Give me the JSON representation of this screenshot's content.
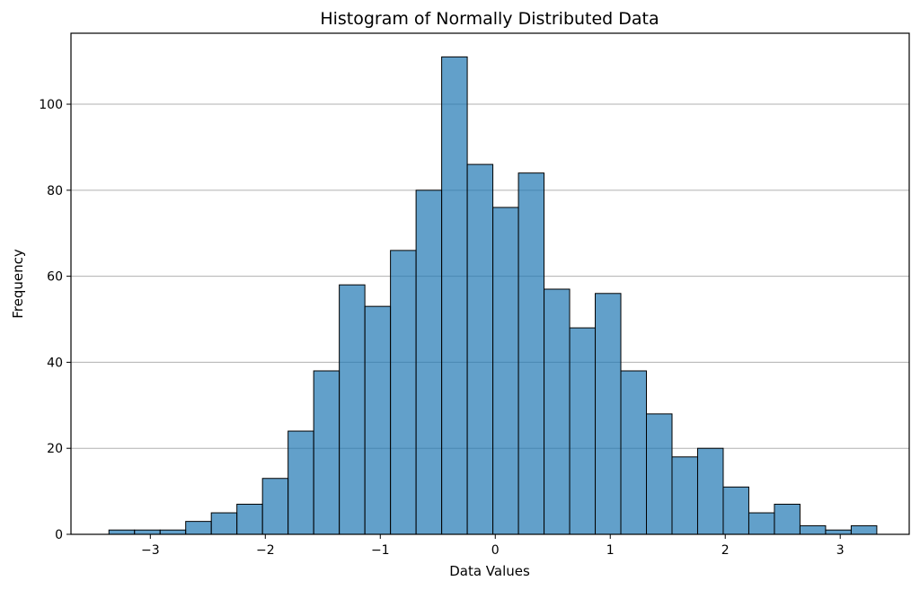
{
  "chart_data": {
    "type": "bar",
    "title": "Histogram of Normally Distributed Data",
    "xlabel": "Data Values",
    "ylabel": "Frequency",
    "bin_start": -3.36,
    "bin_width": 0.2226,
    "values": [
      1,
      1,
      1,
      3,
      5,
      7,
      13,
      24,
      38,
      58,
      53,
      66,
      80,
      111,
      86,
      76,
      84,
      57,
      48,
      56,
      38,
      28,
      18,
      20,
      11,
      5,
      7,
      2,
      1,
      2
    ],
    "xlim": [
      -3.69,
      3.6
    ],
    "ylim": [
      0,
      116.5
    ],
    "xticks": [
      -3,
      -2,
      -1,
      0,
      1,
      2,
      3
    ],
    "xtick_labels": [
      "−3",
      "−2",
      "−1",
      "0",
      "1",
      "2",
      "3"
    ],
    "yticks": [
      0,
      20,
      40,
      60,
      80,
      100
    ],
    "ytick_labels": [
      "0",
      "20",
      "40",
      "60",
      "80",
      "100"
    ],
    "grid": "y",
    "bar_color": "#1f77b4"
  }
}
